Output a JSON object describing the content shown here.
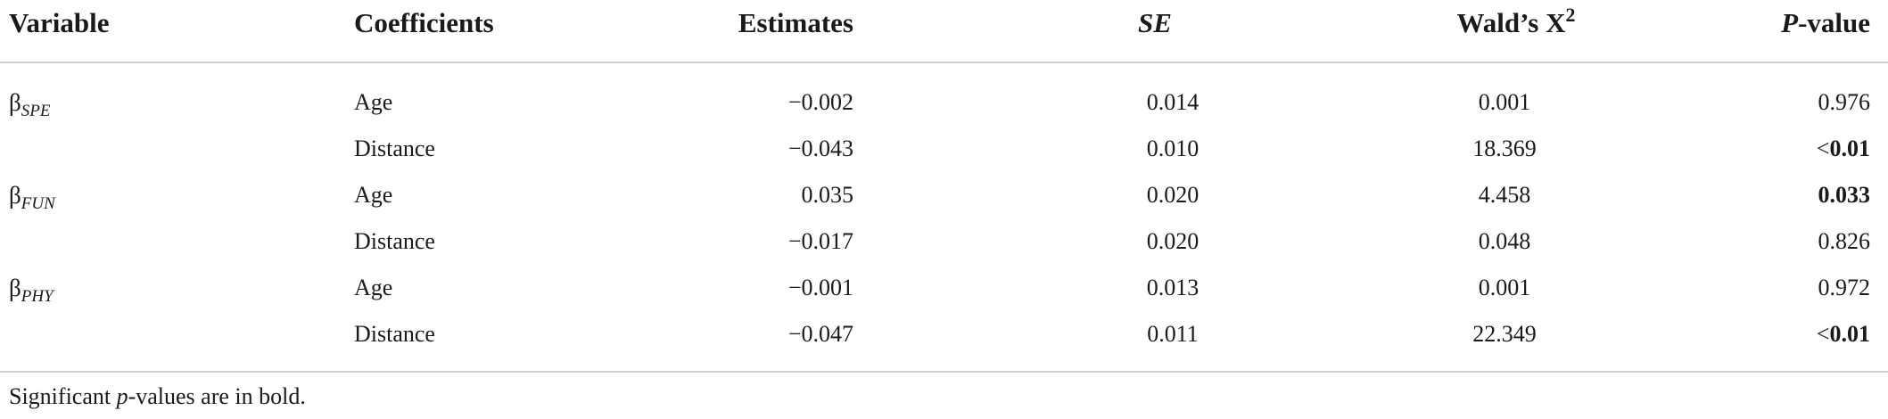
{
  "table": {
    "headers": {
      "variable": "Variable",
      "coefficients": "Coefficients",
      "estimates": "Estimates",
      "se": "SE",
      "wald": "Wald’s X",
      "wald_sup": "2",
      "p_italic": "P",
      "p_rest": "-value"
    },
    "groups": [
      {
        "beta": "β",
        "sub": "SPE"
      },
      {
        "beta": "β",
        "sub": "FUN"
      },
      {
        "beta": "β",
        "sub": "PHY"
      }
    ],
    "rows": [
      {
        "coef": "Age",
        "est": "−0.002",
        "se": "0.014",
        "wald": "0.001",
        "p_prefix": "",
        "p": "0.976",
        "p_bold": false
      },
      {
        "coef": "Distance",
        "est": "−0.043",
        "se": "0.010",
        "wald": "18.369",
        "p_prefix": "<",
        "p": "0.01",
        "p_bold": true
      },
      {
        "coef": "Age",
        "est": "0.035",
        "se": "0.020",
        "wald": "4.458",
        "p_prefix": "",
        "p": "0.033",
        "p_bold": true
      },
      {
        "coef": "Distance",
        "est": "−0.017",
        "se": "0.020",
        "wald": "0.048",
        "p_prefix": "",
        "p": "0.826",
        "p_bold": false
      },
      {
        "coef": "Age",
        "est": "−0.001",
        "se": "0.013",
        "wald": "0.001",
        "p_prefix": "",
        "p": "0.972",
        "p_bold": false
      },
      {
        "coef": "Distance",
        "est": "−0.047",
        "se": "0.011",
        "wald": "22.349",
        "p_prefix": "<",
        "p": "0.01",
        "p_bold": true
      }
    ],
    "footnote": {
      "pre": "Significant ",
      "p": "p",
      "post": "-values are in bold."
    }
  }
}
